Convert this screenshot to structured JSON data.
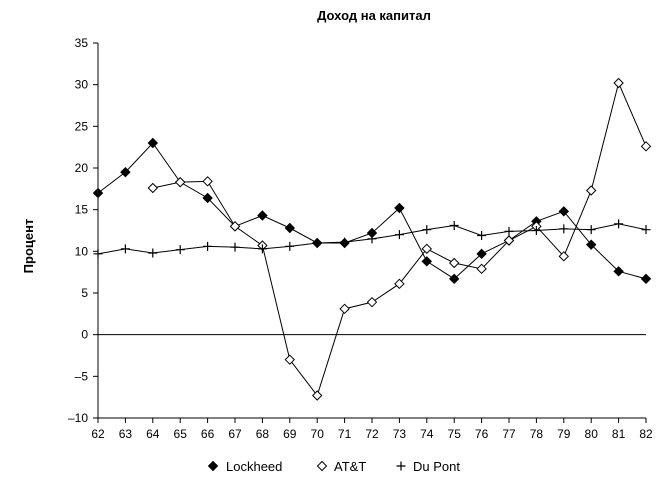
{
  "chart_data": {
    "type": "line",
    "title": "Доход на капитал",
    "xlabel": "",
    "ylabel": "Процент",
    "categories": [
      "62",
      "63",
      "64",
      "65",
      "66",
      "67",
      "68",
      "69",
      "70",
      "71",
      "72",
      "73",
      "74",
      "75",
      "76",
      "77",
      "78",
      "79",
      "80",
      "81",
      "82"
    ],
    "ylim": [
      -10,
      35
    ],
    "yticks": [
      -10,
      -5,
      0,
      5,
      10,
      15,
      20,
      25,
      30,
      35
    ],
    "ytick_labels": [
      "–10",
      "–5",
      "0",
      "5",
      "10",
      "15",
      "20",
      "25",
      "30",
      "35"
    ],
    "grid": false,
    "legend_position": "bottom",
    "series": [
      {
        "name": "Lockheed",
        "marker": "filled-diamond",
        "color": "#000000",
        "values": [
          17,
          19.5,
          23,
          18.3,
          16.4,
          13,
          14.3,
          12.8,
          11,
          11,
          12.2,
          15.2,
          8.8,
          6.7,
          9.7,
          11.3,
          13.6,
          14.8,
          10.8,
          7.6,
          6.7
        ]
      },
      {
        "name": "AT&T",
        "marker": "open-diamond",
        "color": "#000000",
        "values": [
          null,
          null,
          17.6,
          18.3,
          18.4,
          13,
          10.7,
          -3,
          -7.3,
          3.1,
          3.9,
          6.1,
          10.3,
          8.6,
          7.9,
          11.3,
          13,
          9.4,
          17.3,
          30.2,
          22.6
        ]
      },
      {
        "name": "Du Pont",
        "marker": "plus",
        "color": "#000000",
        "values": [
          9.7,
          10.3,
          9.8,
          10.2,
          10.6,
          10.5,
          10.3,
          10.6,
          11,
          11.1,
          11.5,
          12,
          12.6,
          13.1,
          11.9,
          12.4,
          12.5,
          12.7,
          12.6,
          13.3,
          12.6
        ]
      }
    ]
  }
}
